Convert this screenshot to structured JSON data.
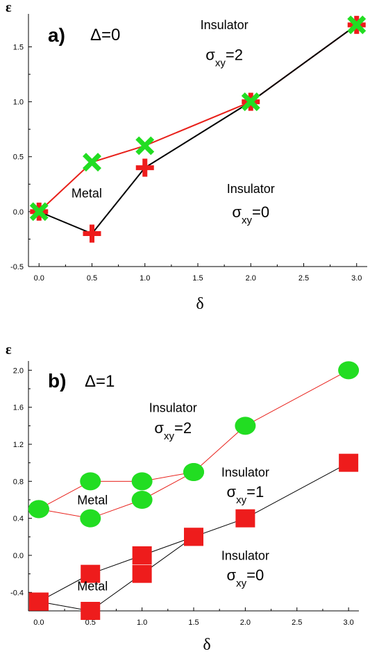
{
  "chart_data": [
    {
      "type": "line",
      "panel_label": "a)",
      "panel_param": "Δ=0",
      "xlabel": "δ",
      "ylabel": "ε",
      "xlim": [
        -0.1,
        3.1
      ],
      "ylim": [
        -0.5,
        1.8
      ],
      "xticks": [
        "0.0",
        "0.5",
        "1.0",
        "1.5",
        "2.0",
        "2.5",
        "3.0"
      ],
      "yticks": [
        "-0.5",
        "0.0",
        "0.5",
        "1.0",
        "1.5"
      ],
      "grid": false,
      "series": [
        {
          "marker": "cross",
          "color": "#22dd22",
          "line_color": "#e8201a",
          "x": [
            0.0,
            0.5,
            1.0,
            2.0,
            3.0
          ],
          "values": [
            0.0,
            0.45,
            0.6,
            1.0,
            1.7
          ]
        },
        {
          "marker": "plus",
          "color": "#ee1c1c",
          "line_color": "#000000",
          "x": [
            0.0,
            0.5,
            1.0,
            2.0,
            3.0
          ],
          "values": [
            0.0,
            -0.2,
            0.4,
            1.0,
            1.7
          ]
        }
      ],
      "annotations": [
        {
          "text": "Insulator",
          "x": 1.75,
          "y": 1.66
        },
        {
          "text": "σ",
          "sub": "xy",
          "rest": "=2",
          "x": 1.75,
          "y": 1.38
        },
        {
          "text": "Metal",
          "x": 0.45,
          "y": 0.13
        },
        {
          "text": "Insulator",
          "x": 2.0,
          "y": 0.17
        },
        {
          "text": "σ",
          "sub": "xy",
          "rest": "=0",
          "x": 2.0,
          "y": -0.05
        }
      ]
    },
    {
      "type": "line",
      "panel_label": "b)",
      "panel_param": "Δ=1",
      "xlabel": "δ",
      "ylabel": "ε",
      "xlim": [
        -0.1,
        3.1
      ],
      "ylim": [
        -0.6,
        2.1
      ],
      "xticks": [
        "0.0",
        "0.5",
        "1.0",
        "1.5",
        "2.0",
        "2.5",
        "3.0"
      ],
      "yticks": [
        "-0.4",
        "0.0",
        "0.4",
        "0.8",
        "1.2",
        "1.6",
        "2.0"
      ],
      "grid": false,
      "series": [
        {
          "marker": "circle",
          "color": "#22dd22",
          "line_color": "#e8201a",
          "x": [
            0.0,
            0.5,
            1.0,
            1.5,
            2.0,
            3.0
          ],
          "values": [
            0.5,
            0.8,
            0.8,
            0.9,
            1.4,
            2.0
          ]
        },
        {
          "marker": "circle",
          "color": "#22dd22",
          "line_color": "#e8201a",
          "x": [
            0.0,
            0.5,
            1.0,
            1.5
          ],
          "values": [
            0.5,
            0.4,
            0.6,
            0.9
          ]
        },
        {
          "marker": "square",
          "color": "#ee1c1c",
          "line_color": "#000000",
          "x": [
            0.0,
            0.5,
            1.0,
            1.5,
            2.0,
            3.0
          ],
          "values": [
            -0.5,
            -0.2,
            0.0,
            0.2,
            0.4,
            1.0
          ]
        },
        {
          "marker": "square",
          "color": "#ee1c1c",
          "line_color": "#000000",
          "x": [
            0.0,
            0.5,
            1.0,
            1.5
          ],
          "values": [
            -0.5,
            -0.6,
            -0.2,
            0.2
          ]
        }
      ],
      "annotations": [
        {
          "text": "Insulator",
          "x": 1.3,
          "y": 1.55
        },
        {
          "text": "σ",
          "sub": "xy",
          "rest": "=2",
          "x": 1.3,
          "y": 1.32
        },
        {
          "text": "Metal",
          "x": 0.52,
          "y": 0.55
        },
        {
          "text": "Insulator",
          "x": 2.0,
          "y": 0.85
        },
        {
          "text": "σ",
          "sub": "xy",
          "rest": "=1",
          "x": 2.0,
          "y": 0.63
        },
        {
          "text": "Metal",
          "x": 0.52,
          "y": -0.38
        },
        {
          "text": "Insulator",
          "x": 2.0,
          "y": -0.05
        },
        {
          "text": "σ",
          "sub": "xy",
          "rest": "=0",
          "x": 2.0,
          "y": -0.27
        }
      ]
    }
  ]
}
